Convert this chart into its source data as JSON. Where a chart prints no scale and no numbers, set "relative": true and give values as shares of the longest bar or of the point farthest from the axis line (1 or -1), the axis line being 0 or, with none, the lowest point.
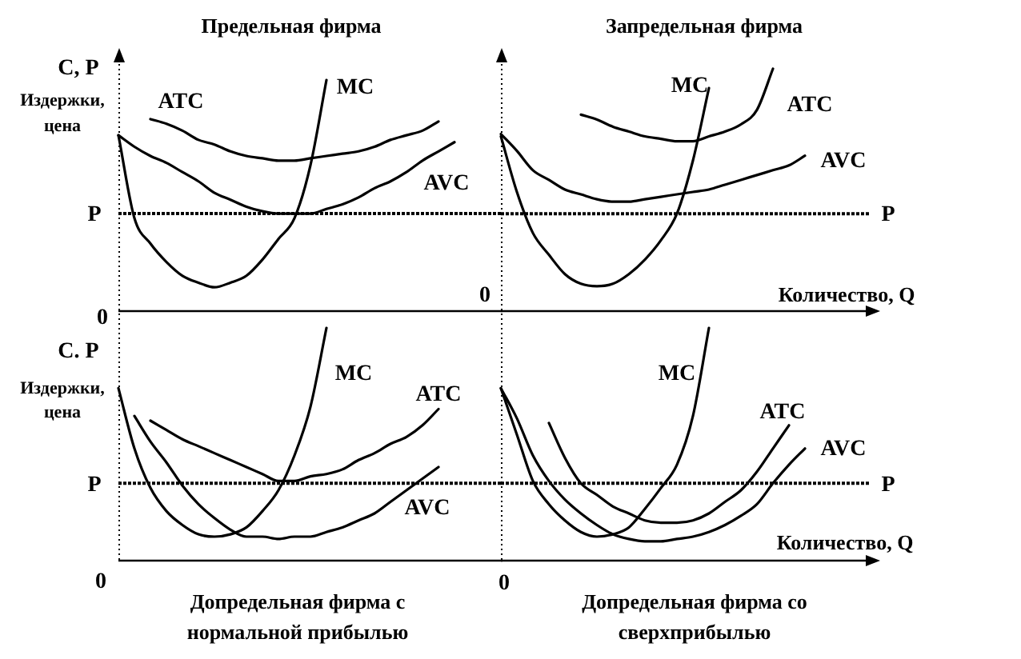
{
  "chart_data": [
    {
      "type": "line",
      "title": "Предельная фирма",
      "ylabel": "C, P",
      "annotations": [
        "Издержки, цена",
        "0"
      ],
      "relative": true,
      "categories": [
        null,
        null,
        null,
        null,
        null,
        null,
        null,
        null,
        null,
        null,
        null,
        null,
        null,
        null,
        null,
        null,
        null,
        null,
        null,
        null,
        null,
        null,
        null,
        null,
        null
      ],
      "series": [
        {
          "name": "MC",
          "color": "#000000",
          "values": [
            0.76,
            0.4,
            0.29,
            0.21,
            0.15,
            0.12,
            0.1,
            0.12,
            0.15,
            0.22,
            0.31,
            0.4,
            0.63,
            1,
            null,
            null,
            null,
            null,
            null,
            null,
            null,
            null,
            null,
            null,
            null
          ]
        },
        {
          "name": "ATC",
          "color": "#000000",
          "values": [
            null,
            null,
            0.83,
            0.81,
            0.78,
            0.74,
            0.72,
            0.69,
            0.67,
            0.66,
            0.65,
            0.65,
            0.66,
            0.67,
            0.68,
            0.69,
            0.71,
            0.74,
            0.76,
            0.78,
            0.82,
            null,
            null,
            null,
            null
          ]
        },
        {
          "name": "AVC",
          "color": "#000000",
          "values": [
            0.76,
            0.71,
            0.67,
            0.64,
            0.6,
            0.56,
            0.51,
            0.48,
            0.45,
            0.43,
            0.42,
            0.42,
            0.42,
            0.44,
            0.46,
            0.49,
            0.53,
            0.56,
            0.6,
            0.65,
            0.69,
            0.73,
            null,
            null,
            null
          ]
        }
      ],
      "ref_lines": [
        {
          "axis": "y",
          "value": 0.42,
          "label": "P",
          "color": "#000000",
          "line_style": "dotted"
        }
      ]
    },
    {
      "type": "line",
      "title": "Запредельная фирма",
      "xlabel": "Количество, Q",
      "annotations": [
        "0"
      ],
      "relative": true,
      "categories": [
        null,
        null,
        null,
        null,
        null,
        null,
        null,
        null,
        null,
        null,
        null,
        null,
        null,
        null,
        null,
        null,
        null,
        null,
        null,
        null,
        null,
        null,
        null,
        null
      ],
      "series": [
        {
          "name": "MC",
          "color": "#000000",
          "values": [
            0.72,
            0.49,
            0.32,
            0.23,
            0.15,
            0.11,
            0.1,
            0.11,
            0.15,
            0.21,
            0.29,
            0.4,
            0.62,
            0.92,
            null,
            null,
            null,
            null,
            null,
            null,
            null,
            null,
            null,
            null
          ]
        },
        {
          "name": "ATC",
          "color": "#000000",
          "values": [
            null,
            null,
            null,
            null,
            null,
            0.81,
            0.79,
            0.76,
            0.74,
            0.72,
            0.71,
            0.7,
            0.7,
            0.72,
            0.74,
            0.77,
            0.83,
            1,
            null,
            null,
            null,
            null,
            null,
            null
          ]
        },
        {
          "name": "AVC",
          "color": "#000000",
          "values": [
            0.73,
            0.66,
            0.58,
            0.54,
            0.5,
            0.48,
            0.46,
            0.45,
            0.45,
            0.46,
            0.47,
            0.48,
            0.49,
            0.5,
            0.52,
            0.54,
            0.56,
            0.58,
            0.6,
            0.64,
            null,
            null,
            null,
            null
          ]
        }
      ],
      "ref_lines": [
        {
          "axis": "y",
          "value": 0.4,
          "label": "P",
          "color": "#000000",
          "line_style": "dotted"
        }
      ]
    },
    {
      "type": "line",
      "title": "Допредельная фирма с нормальной прибылью",
      "ylabel": "C. P",
      "annotations": [
        "Издержки, цена",
        "0"
      ],
      "relative": true,
      "categories": [
        null,
        null,
        null,
        null,
        null,
        null,
        null,
        null,
        null,
        null,
        null,
        null,
        null,
        null,
        null,
        null,
        null,
        null,
        null,
        null,
        null,
        null,
        null,
        null,
        null
      ],
      "series": [
        {
          "name": "MC",
          "color": "#000000",
          "values": [
            0.74,
            0.48,
            0.31,
            0.21,
            0.15,
            0.11,
            0.1,
            0.11,
            0.14,
            0.21,
            0.3,
            0.45,
            0.66,
            1,
            null,
            null,
            null,
            null,
            null,
            null,
            null,
            null,
            null,
            null,
            null
          ]
        },
        {
          "name": "ATC",
          "color": "#000000",
          "values": [
            null,
            null,
            0.6,
            0.56,
            0.52,
            0.49,
            0.46,
            0.43,
            0.4,
            0.37,
            0.34,
            0.34,
            0.36,
            0.37,
            0.39,
            0.43,
            0.46,
            0.5,
            0.53,
            0.58,
            0.65,
            null,
            null,
            null,
            null
          ]
        },
        {
          "name": "AVC",
          "color": "#000000",
          "values": [
            null,
            0.62,
            0.51,
            0.42,
            0.32,
            0.24,
            0.18,
            0.13,
            0.1,
            0.1,
            0.09,
            0.1,
            0.1,
            0.12,
            0.14,
            0.17,
            0.2,
            0.25,
            0.3,
            0.35,
            0.4,
            null,
            null,
            null,
            null
          ]
        }
      ],
      "ref_lines": [
        {
          "axis": "y",
          "value": 0.33,
          "label": "P",
          "color": "#000000",
          "line_style": "dotted"
        }
      ]
    },
    {
      "type": "line",
      "title": "Допредельная фирма со сверхприбылью",
      "xlabel": "Количество, Q",
      "annotations": [
        "0"
      ],
      "relative": true,
      "categories": [
        null,
        null,
        null,
        null,
        null,
        null,
        null,
        null,
        null,
        null,
        null,
        null,
        null,
        null,
        null,
        null,
        null,
        null,
        null,
        null,
        null,
        null,
        null,
        null
      ],
      "series": [
        {
          "name": "MC",
          "color": "#000000",
          "values": [
            0.74,
            0.54,
            0.34,
            0.24,
            0.17,
            0.12,
            0.1,
            0.11,
            0.14,
            0.22,
            0.31,
            0.41,
            0.62,
            1,
            null,
            null,
            null,
            null,
            null,
            null,
            null,
            null,
            null,
            null
          ]
        },
        {
          "name": "ATC",
          "color": "#000000",
          "values": [
            null,
            null,
            null,
            0.59,
            0.44,
            0.33,
            0.28,
            0.23,
            0.2,
            0.17,
            0.16,
            0.16,
            0.17,
            0.2,
            0.25,
            0.3,
            0.38,
            0.48,
            0.58,
            null,
            null,
            null,
            null,
            null
          ]
        },
        {
          "name": "AVC",
          "color": "#000000",
          "values": [
            0.74,
            0.61,
            0.45,
            0.34,
            0.26,
            0.2,
            0.15,
            0.11,
            0.09,
            0.08,
            0.08,
            0.09,
            0.1,
            0.12,
            0.15,
            0.19,
            0.24,
            0.33,
            0.41,
            0.48,
            null,
            null,
            null,
            null
          ]
        }
      ],
      "ref_lines": [
        {
          "axis": "y",
          "value": 0.33,
          "label": "P",
          "color": "#000000",
          "line_style": "dotted"
        }
      ]
    }
  ]
}
